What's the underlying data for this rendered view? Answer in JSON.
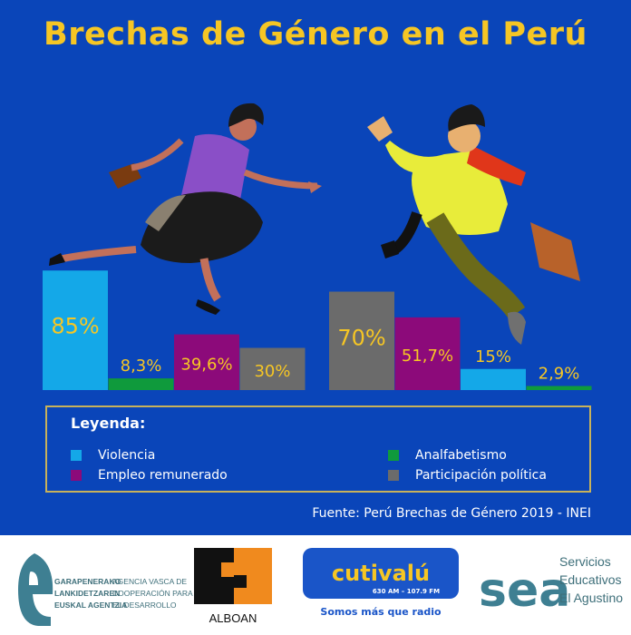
{
  "title": "Brechas de Género en el Perú",
  "colors": {
    "background": "#0a45b9",
    "title": "#f6c624",
    "Violencia": "#14a8e8",
    "Analfabetismo": "#0f9a3c",
    "Empleo remunerado": "#8c0a7a",
    "Participación política": "#6b6b6b",
    "value_label": "#f6c624"
  },
  "chart_data": {
    "type": "bar",
    "title": "Brechas de Género en el Perú",
    "groups": [
      {
        "figure": "woman",
        "bars": [
          {
            "category": "Violencia",
            "value": 85,
            "label": "85%"
          },
          {
            "category": "Analfabetismo",
            "value": 8.3,
            "label": "8,3%"
          },
          {
            "category": "Empleo remunerado",
            "value": 39.6,
            "label": "39,6%"
          },
          {
            "category": "Participación política",
            "value": 30,
            "label": "30%"
          }
        ]
      },
      {
        "figure": "man",
        "bars": [
          {
            "category": "Participación política",
            "value": 70,
            "label": "70%"
          },
          {
            "category": "Empleo remunerado",
            "value": 51.7,
            "label": "51,7%"
          },
          {
            "category": "Violencia",
            "value": 15,
            "label": "15%"
          },
          {
            "category": "Analfabetismo",
            "value": 2.9,
            "label": "2,9%"
          }
        ]
      }
    ],
    "legend_placement": "bottom",
    "grid": false
  },
  "legend": {
    "title": "Leyenda:",
    "items": [
      "Violencia",
      "Empleo remunerado",
      "Analfabetismo",
      "Participación política"
    ]
  },
  "source": "Fuente: Perú Brechas de Género 2019 - INEI",
  "logos": {
    "elkartasuna": {
      "line1a": "GARAPENERAKO",
      "line2a": "LANKIDETZAREN",
      "line3a": "EUSKAL AGENTZIA",
      "line1b": "AGENCIA VASCA DE",
      "line2b": "COOPERACIÓN PARA",
      "line3b": "EL DESARROLLO"
    },
    "alboan": "ALBOAN",
    "cutivalu": {
      "name": "cutivalú",
      "freq": "630 AM – 107.9 FM",
      "slogan": "Somos más que radio"
    },
    "sea": {
      "mark": "sea",
      "line1": "Servicios",
      "line2": "Educativos",
      "line3": "El Agustino"
    }
  }
}
